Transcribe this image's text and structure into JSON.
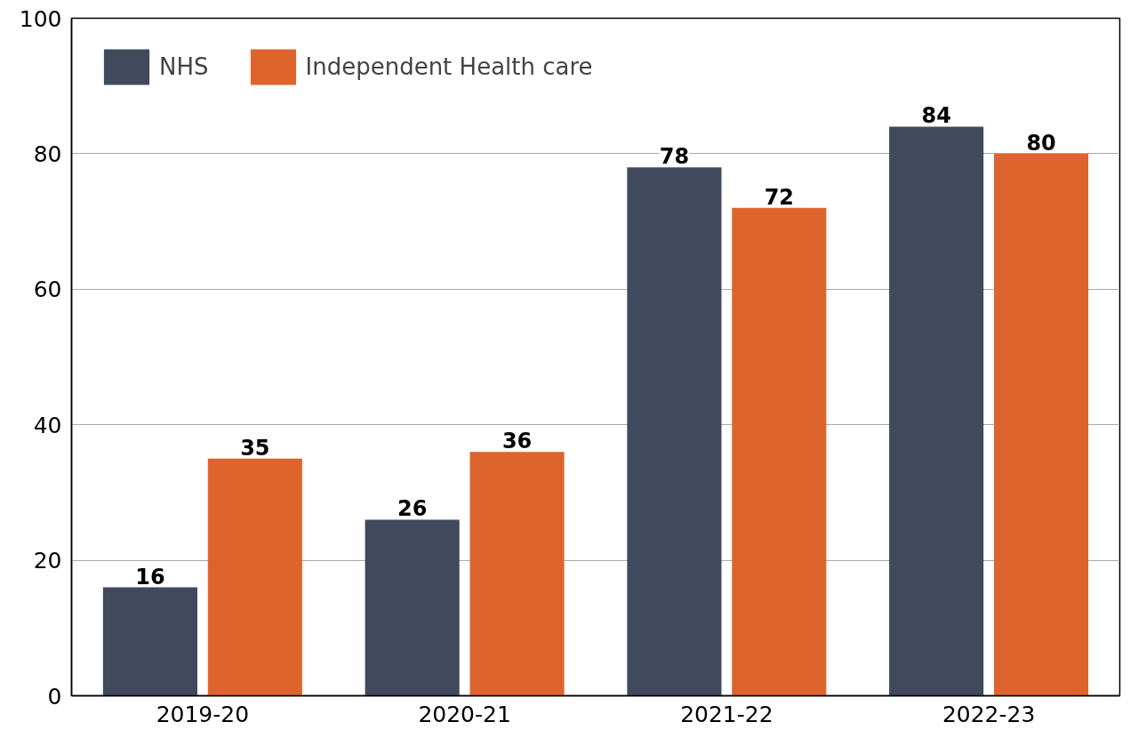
{
  "chart_data": {
    "type": "bar",
    "categories": [
      "2019-20",
      "2020-21",
      "2021-22",
      "2022-23"
    ],
    "series": [
      {
        "name": "NHS",
        "color": "#404a5c",
        "values": [
          16,
          26,
          78,
          84
        ]
      },
      {
        "name": "Independent Health care",
        "color": "#dd652d",
        "values": [
          35,
          36,
          72,
          80
        ]
      }
    ],
    "ylim": [
      0,
      100
    ],
    "yticks": [
      0,
      20,
      40,
      60,
      80,
      100
    ],
    "grid": "y",
    "legend": "top left",
    "data_labels": true
  }
}
